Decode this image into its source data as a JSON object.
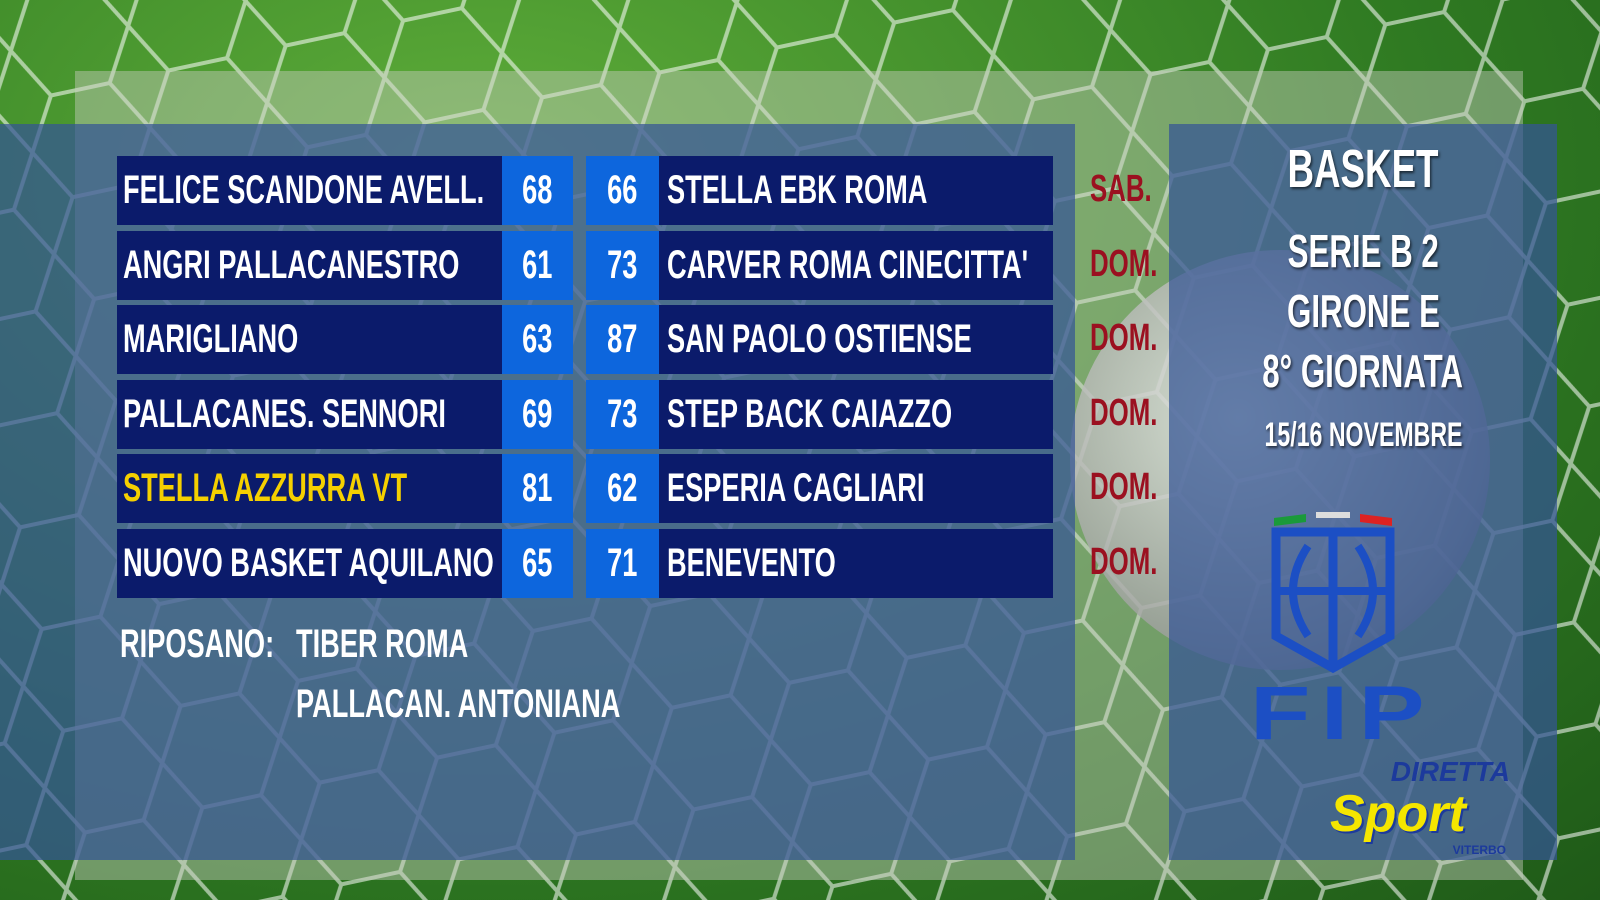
{
  "matches": [
    {
      "home": "FELICE SCANDONE AVELL.",
      "home_score": "68",
      "away_score": "66",
      "away": "STELLA EBK ROMA",
      "day": "SAB."
    },
    {
      "home": "ANGRI PALLACANESTRO",
      "home_score": "61",
      "away_score": "73",
      "away": "CARVER ROMA CINECITTA'",
      "day": "DOM."
    },
    {
      "home": "MARIGLIANO",
      "home_score": "63",
      "away_score": "87",
      "away": "SAN PAOLO OSTIENSE",
      "day": "DOM."
    },
    {
      "home": "PALLACANES. SENNORI",
      "home_score": "69",
      "away_score": "73",
      "away": "STEP BACK CAIAZZO",
      "day": "DOM."
    },
    {
      "home": "STELLA AZZURRA VT",
      "home_score": "81",
      "away_score": "62",
      "away": "ESPERIA CAGLIARI",
      "day": "DOM.",
      "highlight": true
    },
    {
      "home": "NUOVO BASKET AQUILANO",
      "home_score": "65",
      "away_score": "71",
      "away": "BENEVENTO",
      "day": "DOM."
    }
  ],
  "rest": {
    "label": "RIPOSANO:",
    "teams": [
      "TIBER ROMA",
      "PALLACAN. ANTONIANA"
    ]
  },
  "side": {
    "sport": "BASKET",
    "league": "SERIE B 2",
    "group": "GIRONE E",
    "round": "8° GIORNATA",
    "dates": "15/16 NOVEMBRE"
  },
  "logos": {
    "fip": "FIP",
    "brand_top": "DIRETTA",
    "brand_main": "Sport",
    "brand_sub": "VITERBO"
  },
  "colors": {
    "row_bg": "#0b1b6b",
    "score_bg": "#0d66dd",
    "highlight": "#f5d000",
    "day": "#9b1020"
  }
}
